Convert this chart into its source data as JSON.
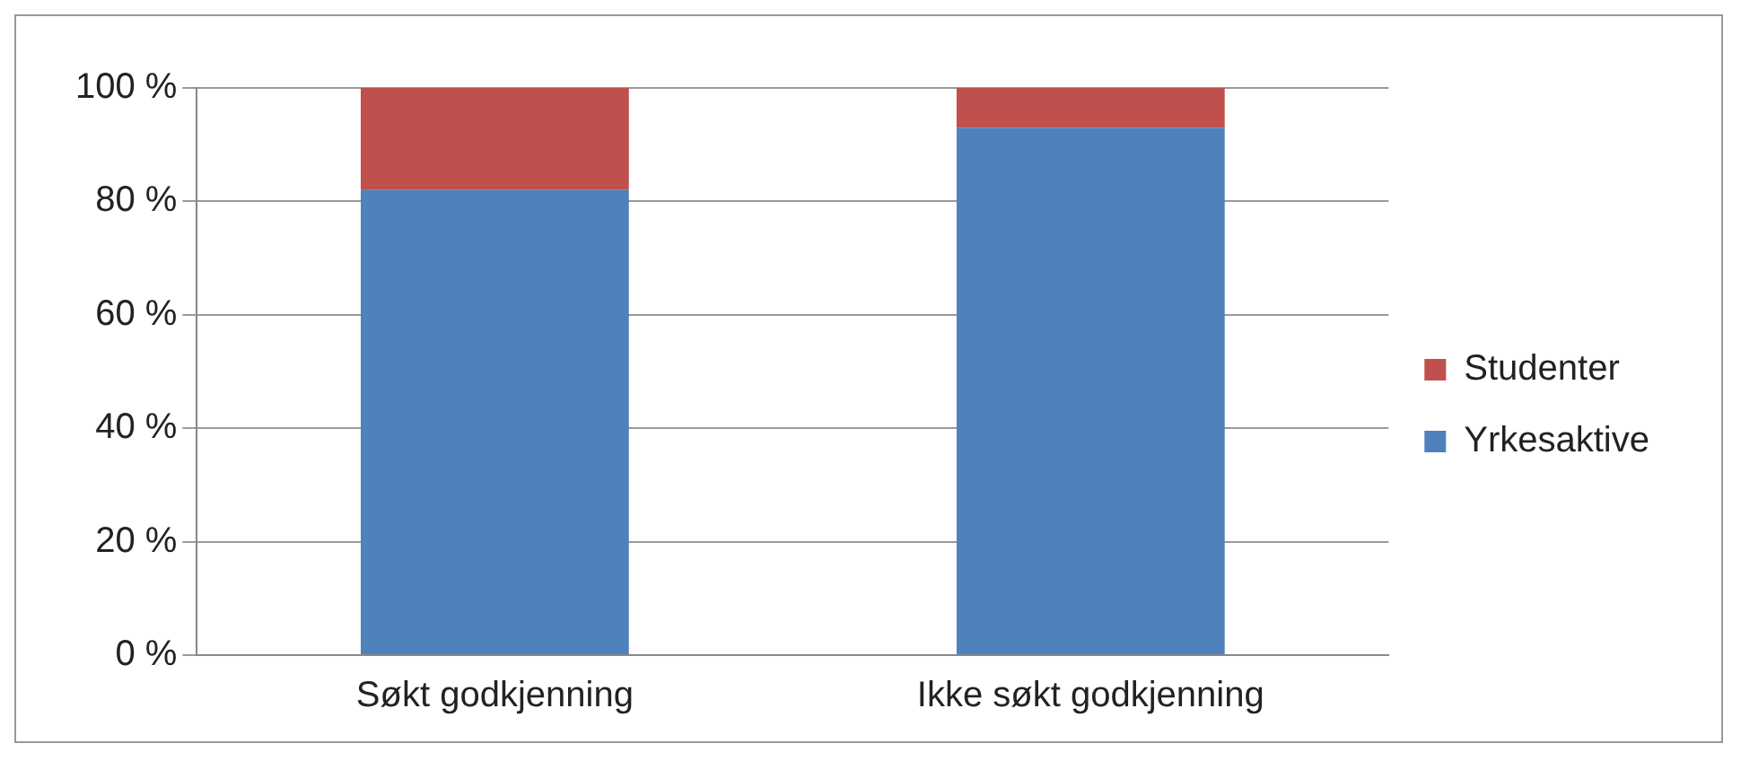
{
  "chart_data": {
    "type": "bar",
    "stacked": true,
    "categories": [
      "Søkt godkjenning",
      "Ikke søkt godkjenning"
    ],
    "series": [
      {
        "name": "Yrkesaktive",
        "color": "#4f81bd",
        "values": [
          82,
          93
        ]
      },
      {
        "name": "Studenter",
        "color": "#c0504d",
        "values": [
          18,
          7
        ]
      }
    ],
    "ylim": [
      0,
      100
    ],
    "yticks": [
      {
        "value": 0,
        "label": "0 %"
      },
      {
        "value": 20,
        "label": "20 %"
      },
      {
        "value": 40,
        "label": "40 %"
      },
      {
        "value": 60,
        "label": "60 %"
      },
      {
        "value": 80,
        "label": "80 %"
      },
      {
        "value": 100,
        "label": "100 %"
      }
    ],
    "grid": "y",
    "legend": "right"
  }
}
